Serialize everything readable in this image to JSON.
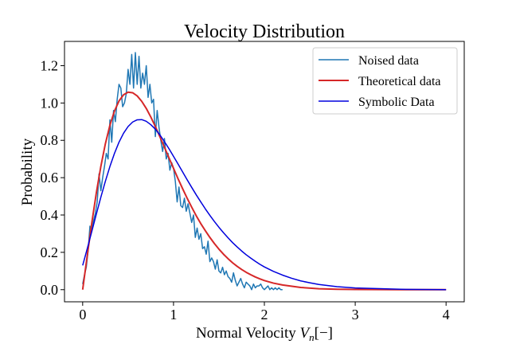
{
  "chart_data": {
    "type": "line",
    "title": "Velocity Distribution",
    "xlabel_main": "Normal Velocity ",
    "xlabel_var": "V",
    "xlabel_sub": "n",
    "xlabel_tail": "[−]",
    "ylabel": "Probability",
    "xlim": [
      -0.2,
      4.2
    ],
    "ylim": [
      -0.065,
      1.33
    ],
    "xticks": [
      0,
      1,
      2,
      3,
      4
    ],
    "yticks": [
      0.0,
      0.2,
      0.4,
      0.6,
      0.8,
      1.0,
      1.2
    ],
    "xtick_labels": [
      "0",
      "1",
      "2",
      "3",
      "4"
    ],
    "ytick_labels": [
      "0.0",
      "0.2",
      "0.4",
      "0.6",
      "0.8",
      "1.0",
      "1.2"
    ],
    "grid": false,
    "legend_position": "top-right",
    "series": [
      {
        "name": "Noised data",
        "color": "#1f77b4",
        "x": [
          0.0,
          0.02,
          0.04,
          0.06,
          0.08,
          0.1,
          0.12,
          0.14,
          0.16,
          0.18,
          0.2,
          0.22,
          0.24,
          0.26,
          0.28,
          0.3,
          0.32,
          0.34,
          0.36,
          0.38,
          0.4,
          0.42,
          0.44,
          0.46,
          0.48,
          0.5,
          0.52,
          0.54,
          0.56,
          0.58,
          0.6,
          0.62,
          0.64,
          0.66,
          0.68,
          0.7,
          0.72,
          0.74,
          0.76,
          0.78,
          0.8,
          0.82,
          0.84,
          0.86,
          0.88,
          0.9,
          0.92,
          0.94,
          0.96,
          0.98,
          1.0,
          1.02,
          1.04,
          1.06,
          1.08,
          1.1,
          1.12,
          1.14,
          1.16,
          1.18,
          1.2,
          1.22,
          1.24,
          1.26,
          1.28,
          1.3,
          1.32,
          1.34,
          1.36,
          1.38,
          1.4,
          1.42,
          1.44,
          1.46,
          1.48,
          1.5,
          1.52,
          1.54,
          1.56,
          1.58,
          1.6,
          1.62,
          1.64,
          1.66,
          1.68,
          1.7,
          1.72,
          1.74,
          1.76,
          1.78,
          1.8,
          1.82,
          1.84,
          1.86,
          1.88,
          1.9,
          1.92,
          1.94,
          1.96,
          1.98,
          2.0,
          2.02,
          2.04,
          2.06,
          2.08,
          2.1,
          2.12,
          2.14,
          2.16,
          2.18,
          2.2
        ],
        "y": [
          0.03,
          0.08,
          0.12,
          0.21,
          0.34,
          0.32,
          0.37,
          0.41,
          0.47,
          0.62,
          0.53,
          0.6,
          0.66,
          0.73,
          0.7,
          0.91,
          0.79,
          0.96,
          0.9,
          1.02,
          1.1,
          1.08,
          0.98,
          1.0,
          1.05,
          1.18,
          1.1,
          1.26,
          1.08,
          1.27,
          1.1,
          1.25,
          1.08,
          1.16,
          1.1,
          1.2,
          1.03,
          1.1,
          1.0,
          1.02,
          0.82,
          0.96,
          0.87,
          0.8,
          0.74,
          0.81,
          0.7,
          0.73,
          0.64,
          0.68,
          0.65,
          0.58,
          0.47,
          0.55,
          0.45,
          0.44,
          0.49,
          0.42,
          0.46,
          0.41,
          0.36,
          0.4,
          0.28,
          0.33,
          0.27,
          0.3,
          0.22,
          0.23,
          0.19,
          0.26,
          0.15,
          0.17,
          0.15,
          0.11,
          0.16,
          0.1,
          0.09,
          0.12,
          0.08,
          0.1,
          0.07,
          0.06,
          0.04,
          0.09,
          0.05,
          0.02,
          0.04,
          0.06,
          0.03,
          0.01,
          0.04,
          0.03,
          0.02,
          0.0,
          0.03,
          0.01,
          0.02,
          0.02,
          0.03,
          0.01,
          0.0,
          0.01,
          0.02,
          0.0,
          0.01,
          0.0,
          0.01,
          0.0,
          0.01,
          0.0,
          0.0
        ]
      },
      {
        "name": "Theoretical data",
        "color": "#d62728",
        "x": [
          0.0,
          0.05,
          0.1,
          0.15,
          0.2,
          0.25,
          0.3,
          0.35,
          0.4,
          0.45,
          0.5,
          0.55,
          0.6,
          0.65,
          0.7,
          0.75,
          0.8,
          0.85,
          0.9,
          0.95,
          1.0,
          1.05,
          1.1,
          1.15,
          1.2,
          1.25,
          1.3,
          1.35,
          1.4,
          1.45,
          1.5,
          1.55,
          1.6,
          1.65,
          1.7,
          1.75,
          1.8,
          1.85,
          1.9,
          1.95,
          2.0,
          2.1,
          2.2,
          2.4,
          2.6,
          2.8,
          3.0,
          3.5,
          4.0
        ],
        "y": [
          0.0,
          0.181,
          0.356,
          0.517,
          0.66,
          0.782,
          0.881,
          0.957,
          1.011,
          1.044,
          1.058,
          1.055,
          1.038,
          1.009,
          0.971,
          0.925,
          0.874,
          0.819,
          0.763,
          0.706,
          0.65,
          0.594,
          0.541,
          0.49,
          0.442,
          0.396,
          0.354,
          0.316,
          0.28,
          0.247,
          0.217,
          0.19,
          0.166,
          0.144,
          0.125,
          0.108,
          0.093,
          0.08,
          0.068,
          0.058,
          0.049,
          0.035,
          0.025,
          0.012,
          0.005,
          0.002,
          0.001,
          0.0,
          0.0
        ]
      },
      {
        "name": "Symbolic Data",
        "color": "#0000dd",
        "x": [
          0.0,
          0.05,
          0.1,
          0.15,
          0.2,
          0.25,
          0.3,
          0.35,
          0.4,
          0.45,
          0.5,
          0.55,
          0.6,
          0.65,
          0.7,
          0.75,
          0.8,
          0.85,
          0.9,
          0.95,
          1.0,
          1.05,
          1.1,
          1.15,
          1.2,
          1.25,
          1.3,
          1.35,
          1.4,
          1.45,
          1.5,
          1.55,
          1.6,
          1.65,
          1.7,
          1.75,
          1.8,
          1.85,
          1.9,
          1.95,
          2.0,
          2.1,
          2.2,
          2.3,
          2.4,
          2.5,
          2.6,
          2.8,
          3.0,
          3.5,
          4.0
        ],
        "y": [
          0.13,
          0.219,
          0.311,
          0.404,
          0.495,
          0.581,
          0.66,
          0.73,
          0.79,
          0.838,
          0.874,
          0.898,
          0.91,
          0.911,
          0.902,
          0.884,
          0.86,
          0.829,
          0.793,
          0.755,
          0.714,
          0.673,
          0.631,
          0.589,
          0.548,
          0.508,
          0.47,
          0.433,
          0.398,
          0.365,
          0.334,
          0.305,
          0.278,
          0.252,
          0.229,
          0.207,
          0.187,
          0.169,
          0.152,
          0.136,
          0.122,
          0.098,
          0.078,
          0.061,
          0.047,
          0.037,
          0.028,
          0.016,
          0.009,
          0.002,
          0.0
        ]
      }
    ]
  }
}
